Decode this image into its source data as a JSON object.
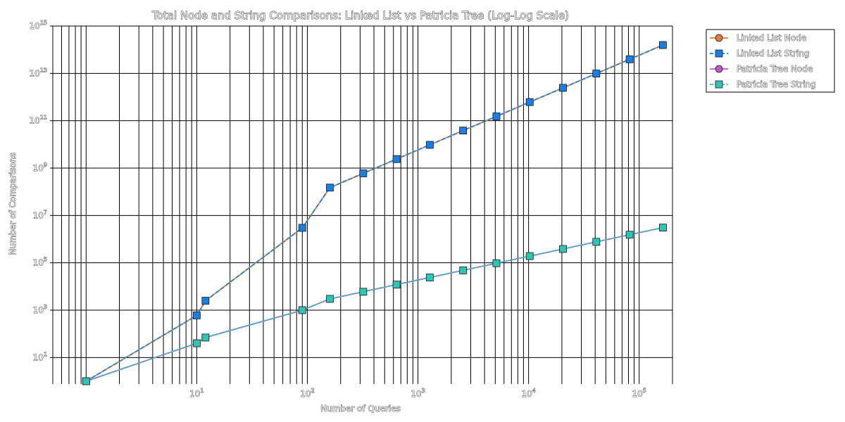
{
  "chart_data": {
    "type": "line",
    "title": "Total Node and String Comparisons: Linked List vs Patricia Tree (Log-Log Scale)",
    "xlabel": "Number of Queries",
    "ylabel": "Number of Comparisons",
    "xscale": "log",
    "yscale": "log",
    "xlim": [
      0.5,
      200000
    ],
    "ylim": [
      1,
      1000000000000000.0
    ],
    "x_ticks": [
      {
        "value": 10,
        "base": "10",
        "exp": "1"
      },
      {
        "value": 100,
        "base": "10",
        "exp": "2"
      },
      {
        "value": 1000,
        "base": "10",
        "exp": "3"
      },
      {
        "value": 10000,
        "base": "10",
        "exp": "4"
      },
      {
        "value": 100000,
        "base": "10",
        "exp": "5"
      }
    ],
    "y_ticks": [
      {
        "value": 10,
        "base": "10",
        "exp": "1"
      },
      {
        "value": 1000,
        "base": "10",
        "exp": "3"
      },
      {
        "value": 100000,
        "base": "10",
        "exp": "5"
      },
      {
        "value": 10000000,
        "base": "10",
        "exp": "7"
      },
      {
        "value": 1000000000,
        "base": "10",
        "exp": "9"
      },
      {
        "value": 100000000000,
        "base": "10",
        "exp": "11"
      },
      {
        "value": 10000000000000,
        "base": "10",
        "exp": "13"
      },
      {
        "value": 1000000000000000,
        "base": "10",
        "exp": "15"
      }
    ],
    "grid": true,
    "legend_position": "top-right",
    "x": [
      1,
      10,
      12,
      90,
      160,
      320,
      640,
      1280,
      2560,
      5120,
      10240,
      20480,
      40960,
      81920,
      163840
    ],
    "series": [
      {
        "name": "Linked List Node",
        "color": "#e07b39",
        "marker": "circle",
        "linestyle": "solid",
        "values": [
          1,
          600,
          2500,
          3000000,
          150000000,
          600000000,
          2400000000,
          9600000000,
          38400000000,
          153600000000,
          614400000000,
          2457600000000,
          9830400000000,
          39321600000000,
          157286400000000
        ]
      },
      {
        "name": "Linked List String",
        "color": "#1a7fe0",
        "marker": "square",
        "linestyle": "dashed",
        "values": [
          1,
          600,
          2500,
          3000000,
          150000000,
          600000000,
          2400000000,
          9600000000,
          38400000000,
          153600000000,
          614400000000,
          2457600000000,
          9830400000000,
          39321600000000,
          157286400000000
        ]
      },
      {
        "name": "Patricia Tree Node",
        "color": "#c855c8",
        "marker": "circle",
        "linestyle": "solid",
        "values": [
          1,
          40,
          70,
          1000,
          3000,
          6000,
          12000,
          24000,
          48000,
          96000,
          192000,
          384000,
          768000,
          1536000,
          3072000
        ]
      },
      {
        "name": "Patricia Tree String",
        "color": "#2ec4b6",
        "marker": "square",
        "linestyle": "dashed",
        "values": [
          1,
          40,
          70,
          1000,
          3000,
          6000,
          12000,
          24000,
          48000,
          96000,
          192000,
          384000,
          768000,
          1536000,
          3072000
        ]
      }
    ]
  }
}
